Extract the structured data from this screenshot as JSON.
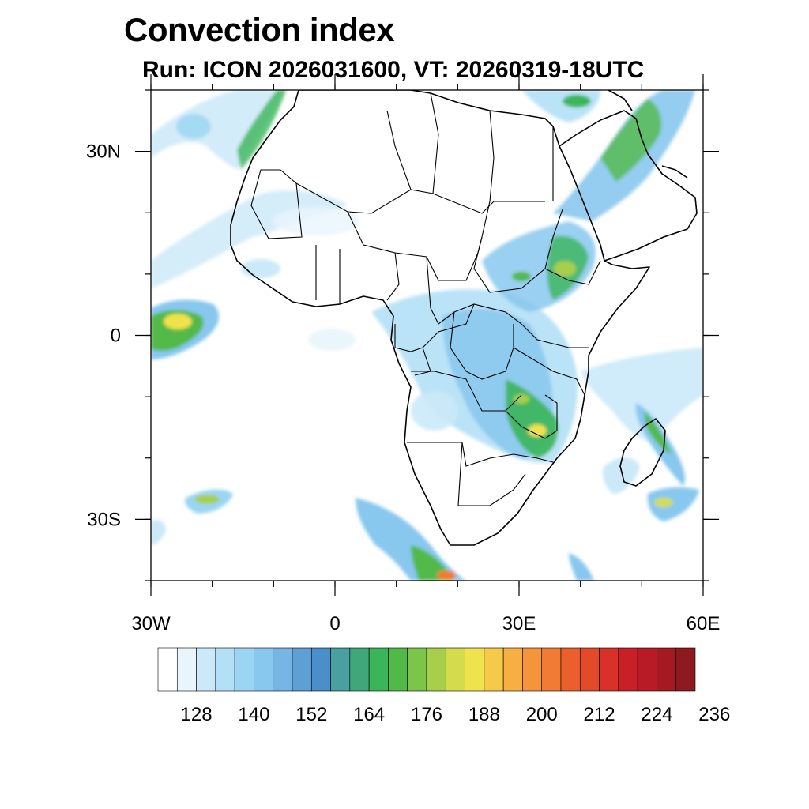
{
  "header": {
    "title": "Convection index",
    "subtitle": "Run: ICON 2026031600,  VT: 20260319-18UTC"
  },
  "map": {
    "projection": "cylindrical equidistant",
    "lon_range": [
      -30,
      60
    ],
    "lat_range": [
      -40,
      40
    ],
    "lat_ticks": [
      {
        "lat": 30,
        "label": "30N"
      },
      {
        "lat": 0,
        "label": "0"
      },
      {
        "lat": -30,
        "label": "30S"
      }
    ],
    "lon_ticks": [
      {
        "lon": -30,
        "label": "30W"
      },
      {
        "lon": 0,
        "label": "0"
      },
      {
        "lon": 30,
        "label": "30E"
      },
      {
        "lon": 60,
        "label": "60E"
      }
    ]
  },
  "colorbar": {
    "labels": [
      "128",
      "140",
      "152",
      "164",
      "176",
      "188",
      "200",
      "212",
      "224",
      "236"
    ],
    "colors": [
      "#ffffff",
      "#e8f5fc",
      "#cbe9f8",
      "#b3e0f6",
      "#9ad6f3",
      "#88c8ee",
      "#76b5e4",
      "#5e9fd6",
      "#4a8fc9",
      "#4a9fa0",
      "#3fa77a",
      "#3bb55a",
      "#52b948",
      "#7cc44a",
      "#a7cf4b",
      "#d4dc4e",
      "#f0e24e",
      "#f7c949",
      "#f7ae43",
      "#f6943c",
      "#f17a34",
      "#ea5f2c",
      "#e24a2a",
      "#d83128",
      "#c92027",
      "#b81a26",
      "#a51a22",
      "#8c1a1e"
    ]
  }
}
